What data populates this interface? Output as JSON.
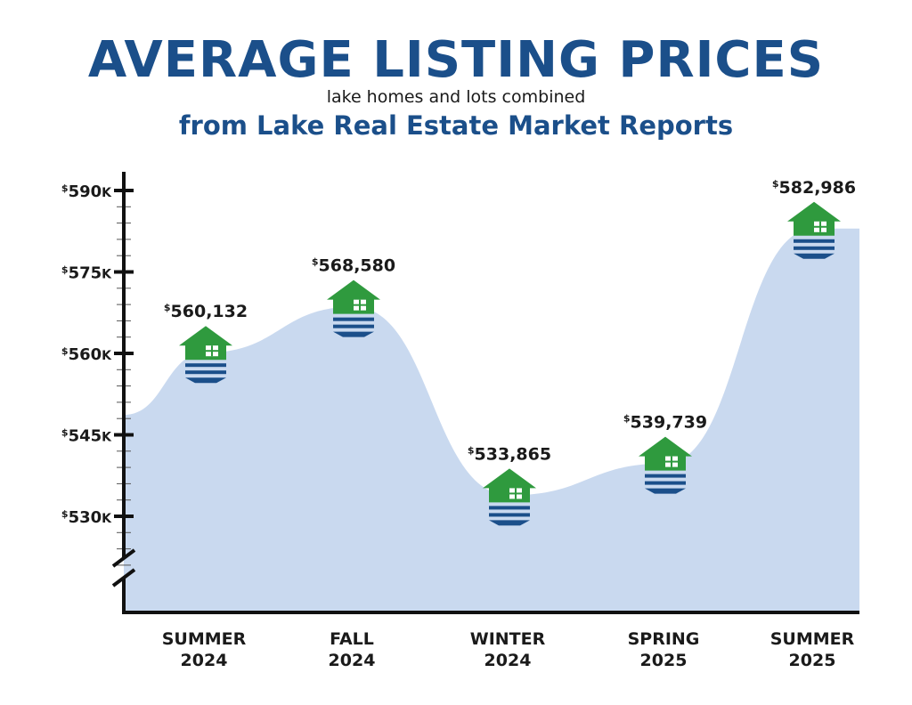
{
  "header": {
    "title": "AVERAGE LISTING PRICES",
    "subtitle": "lake homes and lots combined",
    "source": "from Lake Real Estate Market Reports"
  },
  "chart_data": {
    "type": "area",
    "title": "AVERAGE LISTING PRICES",
    "subtitle": "lake homes and lots combined",
    "categories": [
      [
        "SUMMER",
        "2024"
      ],
      [
        "FALL",
        "2024"
      ],
      [
        "WINTER",
        "2024"
      ],
      [
        "SPRING",
        "2025"
      ],
      [
        "SUMMER",
        "2025"
      ]
    ],
    "values": [
      560132,
      568580,
      533865,
      539739,
      582986
    ],
    "value_labels": [
      "560,132",
      "568,580",
      "533,865",
      "539,739",
      "582,986"
    ],
    "currency_symbol": "$",
    "y_ticks": [
      {
        "value": 590000,
        "label": "590",
        "suffix": "K"
      },
      {
        "value": 575000,
        "label": "575",
        "suffix": "K"
      },
      {
        "value": 560000,
        "label": "560",
        "suffix": "K"
      },
      {
        "value": 545000,
        "label": "545",
        "suffix": "K"
      },
      {
        "value": 530000,
        "label": "530",
        "suffix": "K"
      }
    ],
    "ylim": [
      530000,
      590000
    ],
    "axis_break": true,
    "grid": false,
    "marker": "house-icon",
    "colors": {
      "area": "#c9d9ef",
      "axis": "#111111",
      "house_roof": "#2f9a3e",
      "house_water": "#1b4f8a",
      "title": "#1b4f8a"
    }
  }
}
